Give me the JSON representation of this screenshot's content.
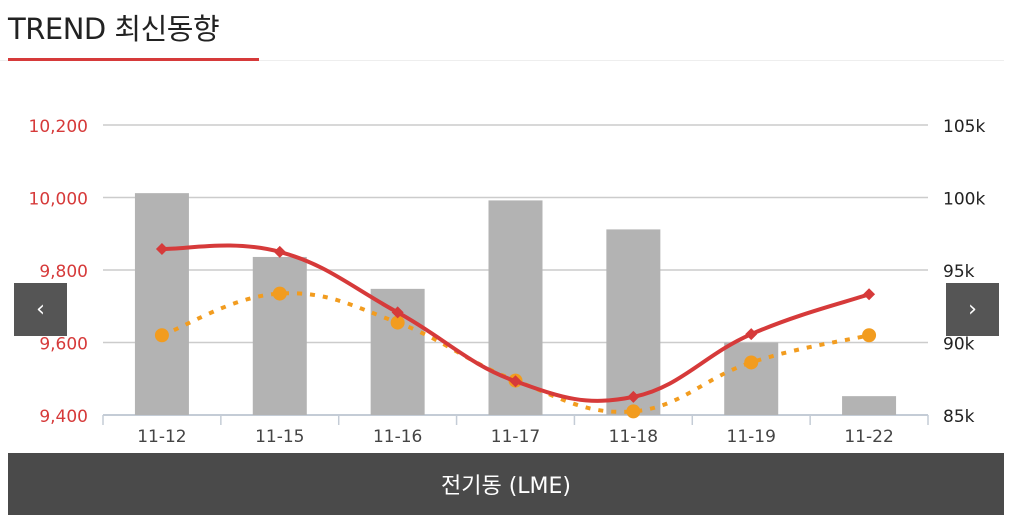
{
  "header": {
    "title": "TREND 최신동향"
  },
  "nav": {
    "prev_label": "‹",
    "next_label": "›",
    "prev_icon": "chevron-left-icon",
    "next_icon": "chevron-right-icon"
  },
  "footer": {
    "label": "전기동 (LME)"
  },
  "colors": {
    "accent": "#d63a3a",
    "line_primary": "#d63a3a",
    "line_secondary": "#f29c1f",
    "bars": "#b3b3b3",
    "grid": "#cccccc"
  },
  "chart_data": {
    "type": "bar+line",
    "categories": [
      "11-12",
      "11-15",
      "11-16",
      "11-17",
      "11-18",
      "11-19",
      "11-22"
    ],
    "left_axis": {
      "ticks": [
        9400,
        9600,
        9800,
        10000,
        10200
      ],
      "tick_labels": [
        "9,400",
        "9,600",
        "9,800",
        "10,000",
        "10,200"
      ],
      "range": [
        9400,
        10200
      ]
    },
    "right_axis": {
      "ticks": [
        85000,
        90000,
        95000,
        100000,
        105000
      ],
      "tick_labels": [
        "85k",
        "90k",
        "95k",
        "100k",
        "105k"
      ],
      "range": [
        85000,
        105000
      ]
    },
    "series": [
      {
        "type": "bar",
        "axis": "right",
        "values": [
          100300,
          95900,
          93700,
          99800,
          97800,
          90000,
          86300
        ]
      },
      {
        "type": "line",
        "axis": "left",
        "style": "solid",
        "marker": "diamond",
        "values": [
          9858,
          9850,
          9683,
          9493,
          9450,
          9623,
          9733
        ]
      },
      {
        "type": "line",
        "axis": "left",
        "style": "dotted",
        "marker": "circle",
        "values": [
          9620,
          9735,
          9655,
          9495,
          9410,
          9545,
          9620
        ]
      }
    ],
    "grid": true
  }
}
